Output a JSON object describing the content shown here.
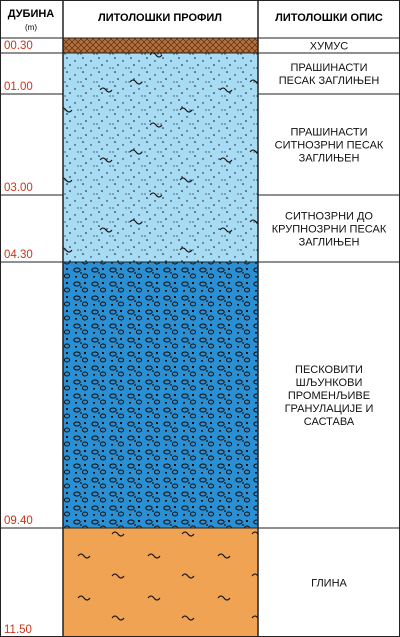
{
  "header": {
    "depth_title": "ДУБИНА",
    "depth_unit": "(m)",
    "profile_title": "ЛИТОЛОШКИ ПРОФИЛ",
    "description_title": "ЛИТОЛОШКИ ОПИС"
  },
  "layers": [
    {
      "depth": "00.30",
      "description": [
        "ХУМУС"
      ]
    },
    {
      "depth": "01.00",
      "description": [
        "ПРАШИНАСТИ",
        "ПЕСАК ЗАГЛИЊЕН"
      ]
    },
    {
      "depth": "03.00",
      "description": [
        "ПРАШИНАСТИ",
        "СИТНОЗРНИ ПЕСАК",
        "ЗАГЛИЊЕН"
      ]
    },
    {
      "depth": "04.30",
      "description": [
        "СИТНОЗРНИ ДО",
        "КРУПНОЗРНИ ПЕСАК",
        "ЗАГЛИЊЕН"
      ]
    },
    {
      "depth": "09.40",
      "description": [
        "ПЕСКОВИТИ",
        "ШЉУНКОВИ",
        "ПРОМЕНЉИВЕ",
        "ГРАНУЛАЦИЈЕ И",
        "САСТАВА"
      ]
    },
    {
      "depth": "11.50",
      "description": [
        "ГЛИНА"
      ]
    }
  ]
}
